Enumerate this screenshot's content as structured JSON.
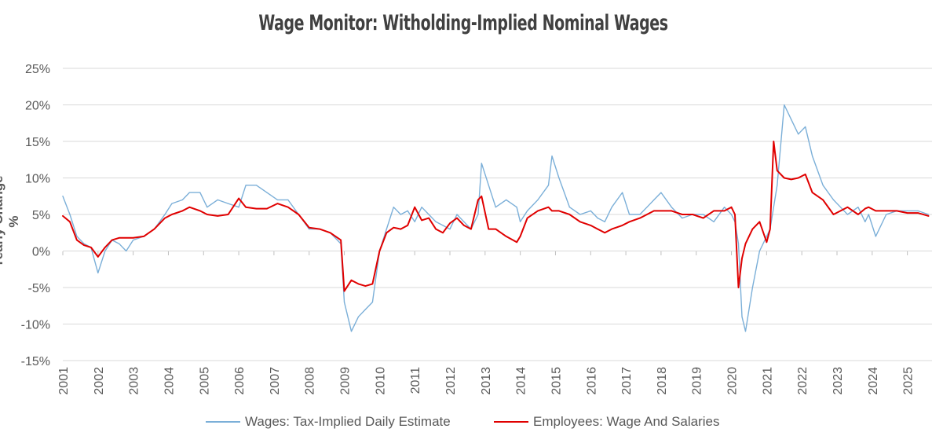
{
  "chart_data": {
    "type": "line",
    "title": "Wage Monitor: Witholding-Implied Nominal Wages",
    "ylabel": "Yearly Change %",
    "xlabel": "",
    "ylim": [
      -15,
      25
    ],
    "xlim": [
      2001,
      2025.7
    ],
    "yticks": [
      "25%",
      "20%",
      "15%",
      "10%",
      "5%",
      "0%",
      "-5%",
      "-10%",
      "-15%"
    ],
    "ytick_values": [
      25,
      20,
      15,
      10,
      5,
      0,
      -5,
      -10,
      -15
    ],
    "xticks": [
      "2001",
      "2002",
      "2003",
      "2004",
      "2005",
      "2006",
      "2007",
      "2008",
      "2009",
      "2010",
      "2011",
      "2012",
      "2013",
      "2014",
      "2015",
      "2016",
      "2017",
      "2018",
      "2019",
      "2020",
      "2021",
      "2022",
      "2023",
      "2024",
      "2025"
    ],
    "grid": "horizontal",
    "legend_position": "bottom",
    "series": [
      {
        "name": "Wages: Tax-Implied Daily Estimate",
        "color": "#7bafd8",
        "x": [
          2001.0,
          2001.2,
          2001.4,
          2001.6,
          2001.8,
          2002.0,
          2002.2,
          2002.4,
          2002.6,
          2002.8,
          2003.0,
          2003.3,
          2003.6,
          2003.9,
          2004.1,
          2004.4,
          2004.6,
          2004.9,
          2005.1,
          2005.4,
          2005.7,
          2006.0,
          2006.2,
          2006.5,
          2006.8,
          2007.1,
          2007.4,
          2007.7,
          2008.0,
          2008.3,
          2008.6,
          2008.9,
          2009.0,
          2009.2,
          2009.4,
          2009.6,
          2009.8,
          2010.0,
          2010.2,
          2010.4,
          2010.6,
          2010.8,
          2011.0,
          2011.2,
          2011.4,
          2011.6,
          2011.8,
          2012.0,
          2012.2,
          2012.4,
          2012.6,
          2012.8,
          2012.9,
          2013.1,
          2013.3,
          2013.6,
          2013.9,
          2014.0,
          2014.2,
          2014.5,
          2014.8,
          2014.9,
          2015.1,
          2015.4,
          2015.7,
          2016.0,
          2016.2,
          2016.4,
          2016.6,
          2016.9,
          2017.1,
          2017.4,
          2017.6,
          2017.8,
          2018.0,
          2018.3,
          2018.6,
          2018.9,
          2019.2,
          2019.5,
          2019.8,
          2020.0,
          2020.1,
          2020.2,
          2020.3,
          2020.4,
          2020.6,
          2020.8,
          2021.0,
          2021.1,
          2021.2,
          2021.3,
          2021.5,
          2021.7,
          2021.9,
          2022.1,
          2022.3,
          2022.6,
          2022.9,
          2023.1,
          2023.3,
          2023.6,
          2023.8,
          2023.9,
          2024.1,
          2024.4,
          2024.7,
          2025.0,
          2025.3,
          2025.6
        ],
        "values": [
          7.5,
          5,
          2,
          1,
          0.5,
          -3,
          0,
          1.5,
          1,
          0,
          1.5,
          2,
          3,
          5,
          6.5,
          7,
          8,
          8,
          6,
          7,
          6.5,
          6,
          9,
          9,
          8,
          7,
          7,
          5,
          3,
          3,
          2.5,
          1,
          -7,
          -11,
          -9,
          -8,
          -7,
          0,
          3,
          6,
          5,
          5.5,
          4,
          6,
          5,
          4,
          3.5,
          3,
          5,
          4,
          3,
          5,
          12,
          9,
          6,
          7,
          6,
          4,
          5.5,
          7,
          9,
          13,
          10,
          6,
          5,
          5.5,
          4.5,
          4,
          6,
          8,
          5,
          5,
          6,
          7,
          8,
          6,
          4.5,
          5,
          5,
          4,
          6,
          5,
          4,
          1,
          -9,
          -11,
          -5,
          0,
          2,
          3,
          6,
          9,
          20,
          18,
          16,
          17,
          13,
          9,
          7,
          6,
          5,
          6,
          4,
          5,
          2,
          5,
          5.5,
          5.5,
          5.5,
          5
        ]
      },
      {
        "name": "Employees: Wage And Salaries",
        "color": "#e00000",
        "x": [
          2001.0,
          2001.2,
          2001.4,
          2001.6,
          2001.8,
          2002.0,
          2002.2,
          2002.4,
          2002.6,
          2002.8,
          2003.0,
          2003.3,
          2003.6,
          2003.9,
          2004.1,
          2004.4,
          2004.6,
          2004.9,
          2005.1,
          2005.4,
          2005.7,
          2006.0,
          2006.2,
          2006.5,
          2006.8,
          2007.1,
          2007.4,
          2007.7,
          2008.0,
          2008.3,
          2008.6,
          2008.9,
          2009.0,
          2009.2,
          2009.4,
          2009.6,
          2009.8,
          2010.0,
          2010.2,
          2010.4,
          2010.6,
          2010.8,
          2011.0,
          2011.2,
          2011.4,
          2011.6,
          2011.8,
          2012.0,
          2012.2,
          2012.4,
          2012.6,
          2012.8,
          2012.9,
          2013.1,
          2013.3,
          2013.6,
          2013.9,
          2014.0,
          2014.2,
          2014.5,
          2014.8,
          2014.9,
          2015.1,
          2015.4,
          2015.7,
          2016.0,
          2016.2,
          2016.4,
          2016.6,
          2016.9,
          2017.1,
          2017.4,
          2017.6,
          2017.8,
          2018.0,
          2018.3,
          2018.6,
          2018.9,
          2019.2,
          2019.5,
          2019.8,
          2020.0,
          2020.1,
          2020.2,
          2020.3,
          2020.4,
          2020.6,
          2020.8,
          2021.0,
          2021.1,
          2021.2,
          2021.3,
          2021.5,
          2021.7,
          2021.9,
          2022.1,
          2022.3,
          2022.6,
          2022.9,
          2023.1,
          2023.3,
          2023.6,
          2023.8,
          2023.9,
          2024.1,
          2024.4,
          2024.7,
          2025.0,
          2025.3,
          2025.6
        ],
        "values": [
          4.8,
          4,
          1.5,
          0.8,
          0.5,
          -0.8,
          0.5,
          1.5,
          1.8,
          1.8,
          1.8,
          2,
          3,
          4.5,
          5,
          5.5,
          6,
          5.5,
          5,
          4.8,
          5,
          7.2,
          6,
          5.8,
          5.8,
          6.5,
          6,
          5,
          3.2,
          3,
          2.5,
          1.5,
          -5.5,
          -4,
          -4.5,
          -4.8,
          -4.5,
          0,
          2.5,
          3.2,
          3,
          3.5,
          6,
          4.2,
          4.5,
          3,
          2.5,
          3.8,
          4.5,
          3.5,
          3,
          7,
          7.5,
          3,
          3,
          2,
          1.2,
          2,
          4.5,
          5.5,
          6,
          5.5,
          5.5,
          5,
          4,
          3.5,
          3,
          2.5,
          3,
          3.5,
          4,
          4.5,
          5,
          5.5,
          5.5,
          5.5,
          5,
          5,
          4.5,
          5.5,
          5.5,
          6,
          5,
          -5,
          -1,
          1,
          3,
          4,
          1.2,
          3,
          15,
          11,
          10,
          9.8,
          10,
          10.5,
          8,
          7,
          5,
          5.5,
          6,
          5,
          5.8,
          6,
          5.5,
          5.5,
          5.5,
          5.2,
          5.2,
          4.8
        ]
      }
    ]
  }
}
